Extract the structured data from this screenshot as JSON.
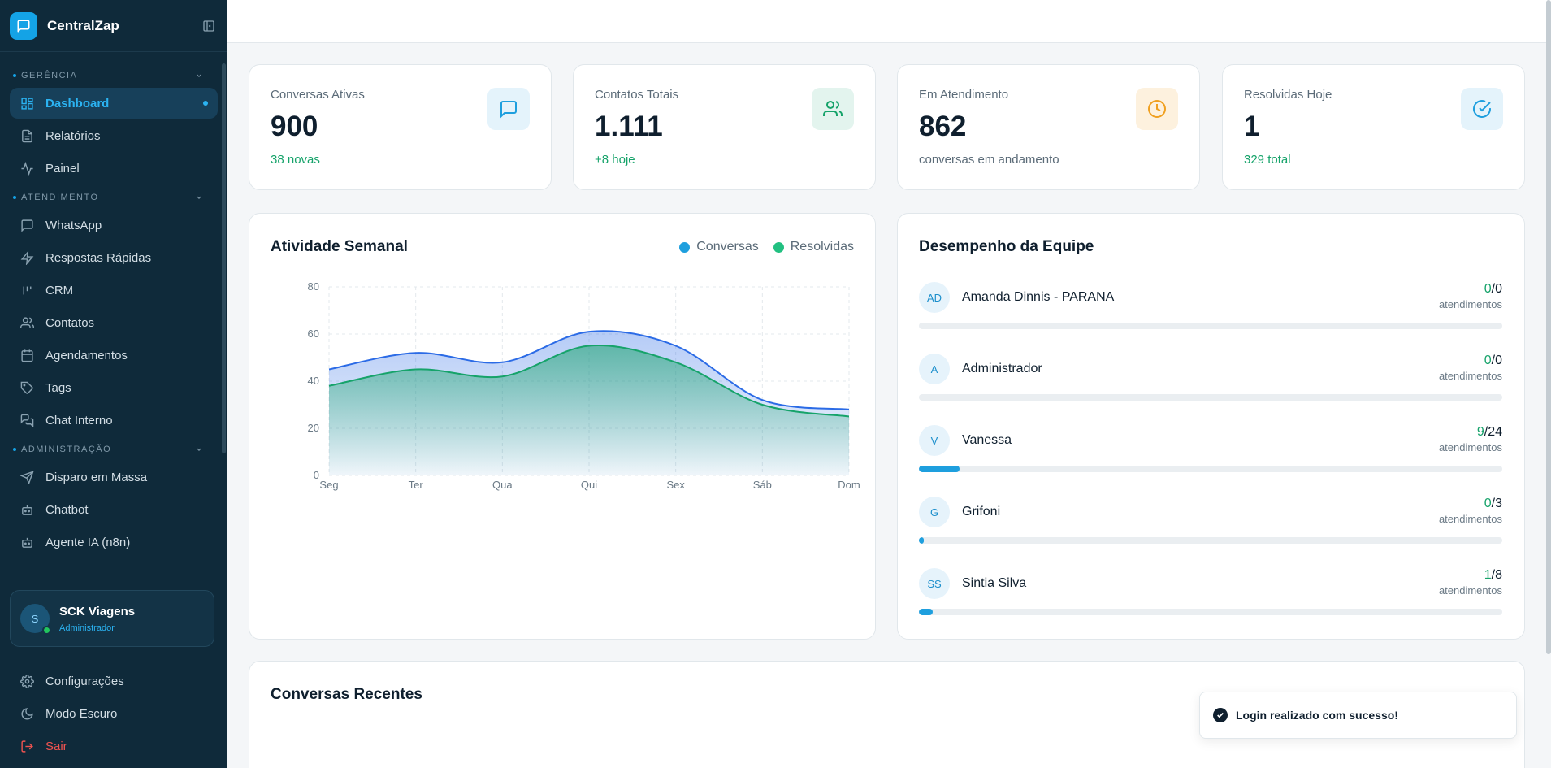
{
  "app": {
    "brand": "CentralZap"
  },
  "sidebar": {
    "sections": [
      {
        "label": "GERÊNCIA"
      },
      {
        "label": "ATENDIMENTO"
      },
      {
        "label": "ADMINISTRAÇÃO"
      }
    ],
    "items": [
      {
        "label": "Dashboard",
        "icon": "dashboard-icon"
      },
      {
        "label": "Relatórios",
        "icon": "file-text-icon"
      },
      {
        "label": "Painel",
        "icon": "activity-icon"
      },
      {
        "label": "WhatsApp",
        "icon": "message-icon"
      },
      {
        "label": "Respostas Rápidas",
        "icon": "zap-icon"
      },
      {
        "label": "CRM",
        "icon": "kanban-icon"
      },
      {
        "label": "Contatos",
        "icon": "users-icon"
      },
      {
        "label": "Agendamentos",
        "icon": "calendar-icon"
      },
      {
        "label": "Tags",
        "icon": "tag-icon"
      },
      {
        "label": "Chat Interno",
        "icon": "chat-icon"
      },
      {
        "label": "Disparo em Massa",
        "icon": "send-icon"
      },
      {
        "label": "Chatbot",
        "icon": "bot-icon"
      },
      {
        "label": "Agente IA (n8n)",
        "icon": "bot-icon"
      }
    ],
    "user": {
      "initial": "S",
      "name": "SCK Viagens",
      "role": "Administrador"
    },
    "bottom": [
      {
        "label": "Configurações",
        "icon": "gear-icon"
      },
      {
        "label": "Modo Escuro",
        "icon": "moon-icon"
      },
      {
        "label": "Sair",
        "icon": "logout-icon"
      }
    ]
  },
  "stats": [
    {
      "label": "Conversas Ativas",
      "value": "900",
      "sub": "38 novas",
      "icon": "message-icon"
    },
    {
      "label": "Contatos Totais",
      "value": "1.111",
      "sub": "+8 hoje",
      "icon": "users-icon"
    },
    {
      "label": "Em Atendimento",
      "value": "862",
      "sub": "conversas em andamento",
      "icon": "clock-icon"
    },
    {
      "label": "Resolvidas Hoje",
      "value": "1",
      "sub": "329 total",
      "icon": "check-circle-icon"
    }
  ],
  "activity": {
    "title": "Atividade Semanal",
    "legend": [
      "Conversas",
      "Resolvidas"
    ]
  },
  "chart_data": {
    "type": "area",
    "categories": [
      "Seg",
      "Ter",
      "Qua",
      "Qui",
      "Sex",
      "Sáb",
      "Dom"
    ],
    "series": [
      {
        "name": "Conversas",
        "values": [
          45,
          52,
          48,
          61,
          55,
          32,
          28
        ],
        "color": "#2b6be6"
      },
      {
        "name": "Resolvidas",
        "values": [
          38,
          45,
          42,
          55,
          48,
          30,
          25
        ],
        "color": "#16a36a"
      }
    ],
    "yticks": [
      "0",
      "20",
      "40",
      "60",
      "80"
    ],
    "ylim": [
      0,
      80
    ],
    "grid": true,
    "legend": "top-right"
  },
  "team": {
    "title": "Desempenho da Equipe",
    "unit": "atendimentos",
    "members": [
      {
        "initials": "AD",
        "name": "Amanda Dinnis - PARANA",
        "done": "0",
        "total": "/0",
        "progress": 0
      },
      {
        "initials": "A",
        "name": "Administrador",
        "done": "0",
        "total": "/0",
        "progress": 0
      },
      {
        "initials": "V",
        "name": "Vanessa",
        "done": "9",
        "total": "/24",
        "progress": 0.07
      },
      {
        "initials": "G",
        "name": "Grifoni",
        "done": "0",
        "total": "/3",
        "progress": 0.008
      },
      {
        "initials": "SS",
        "name": "Sintia Silva",
        "done": "1",
        "total": "/8",
        "progress": 0.023
      }
    ]
  },
  "recent": {
    "title": "Conversas Recentes"
  },
  "toast": {
    "message": "Login realizado com sucesso!"
  }
}
